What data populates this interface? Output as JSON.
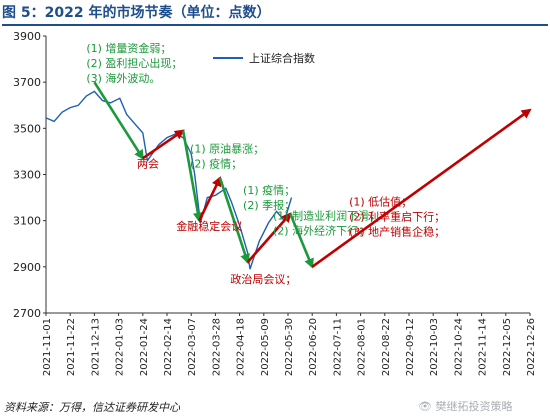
{
  "figure": {
    "title": "图 5：2022 年的市场节奏（单位：点数）",
    "source": "资料来源：万得，信达证券研发中心",
    "watermark": "👁 樊继拓投资策略"
  },
  "colors": {
    "line": "#1f5fb4",
    "green": "#1a9a3a",
    "red": "#c00000"
  },
  "chart_data": {
    "type": "line",
    "series": [
      {
        "name": "上证综合指数",
        "x": [
          "2021-11-01",
          "2021-11-08",
          "2021-11-15",
          "2021-11-22",
          "2021-11-29",
          "2021-12-06",
          "2021-12-13",
          "2021-12-20",
          "2021-12-27",
          "2022-01-04",
          "2022-01-10",
          "2022-01-17",
          "2022-01-24",
          "2022-01-28",
          "2022-02-07",
          "2022-02-14",
          "2022-02-21",
          "2022-02-28",
          "2022-03-07",
          "2022-03-10",
          "2022-03-15",
          "2022-03-21",
          "2022-03-28",
          "2022-04-06",
          "2022-04-11",
          "2022-04-18",
          "2022-04-25",
          "2022-04-27",
          "2022-05-05",
          "2022-05-13",
          "2022-05-20",
          "2022-05-27",
          "2022-06-02"
        ],
        "values": [
          3545,
          3530,
          3570,
          3590,
          3600,
          3640,
          3660,
          3620,
          3610,
          3630,
          3560,
          3520,
          3480,
          3360,
          3430,
          3460,
          3475,
          3460,
          3390,
          3300,
          3090,
          3200,
          3210,
          3240,
          3180,
          3080,
          2960,
          2890,
          3010,
          3090,
          3140,
          3100,
          3200
        ]
      }
    ],
    "ylim": [
      2700,
      3900
    ],
    "yticks": [
      2700,
      2900,
      3100,
      3300,
      3500,
      3700,
      3900
    ],
    "xlim": [
      "2021-11-01",
      "2022-12-26"
    ],
    "xticks": [
      "2021-11-01",
      "2021-11-22",
      "2021-12-13",
      "2022-01-03",
      "2022-01-24",
      "2022-02-14",
      "2022-03-07",
      "2022-03-28",
      "2022-04-18",
      "2022-05-09",
      "2022-05-30",
      "2022-06-20",
      "2022-07-11",
      "2022-08-01",
      "2022-08-22",
      "2022-09-12",
      "2022-10-03",
      "2022-10-24",
      "2022-11-14",
      "2022-12-05",
      "2022-12-26"
    ],
    "legend": {
      "position": "top-right"
    },
    "arrows": [
      {
        "color": "green",
        "from": [
          "2021-12-13",
          3700
        ],
        "to": [
          "2022-01-24",
          3370
        ]
      },
      {
        "color": "red",
        "from": [
          "2022-01-24",
          3370
        ],
        "to": [
          "2022-02-28",
          3490
        ]
      },
      {
        "color": "green",
        "from": [
          "2022-02-28",
          3490
        ],
        "to": [
          "2022-03-14",
          3100
        ]
      },
      {
        "color": "red",
        "from": [
          "2022-03-14",
          3100
        ],
        "to": [
          "2022-04-01",
          3285
        ]
      },
      {
        "color": "green",
        "from": [
          "2022-04-01",
          3285
        ],
        "to": [
          "2022-04-25",
          2920
        ]
      },
      {
        "color": "red",
        "from": [
          "2022-04-25",
          2920
        ],
        "to": [
          "2022-06-01",
          3130
        ]
      },
      {
        "color": "green",
        "from": [
          "2022-06-01",
          3130
        ],
        "to": [
          "2022-06-20",
          2900
        ]
      },
      {
        "color": "red",
        "from": [
          "2022-06-20",
          2900
        ],
        "to": [
          "2022-12-26",
          3580
        ]
      }
    ],
    "annotations": [
      {
        "color": "green",
        "at": [
          "2021-12-06",
          3830
        ],
        "lines": [
          "(1) 增量资金弱；",
          "(2) 盈利担心出现；",
          "(3) 海外波动。"
        ]
      },
      {
        "color": "red",
        "at": [
          "2022-01-19",
          3330
        ],
        "lines": [
          "两会"
        ]
      },
      {
        "color": "green",
        "at": [
          "2022-03-06",
          3395
        ],
        "lines": [
          "(1) 原油暴涨；",
          "(2) 疫情；"
        ]
      },
      {
        "color": "red",
        "at": [
          "2022-02-22",
          3060
        ],
        "lines": [
          "金融稳定会议"
        ]
      },
      {
        "color": "green",
        "at": [
          "2022-04-21",
          3215
        ],
        "lines": [
          "(1) 疫情；",
          "(2) 季报；"
        ]
      },
      {
        "color": "green",
        "at": [
          "2022-05-17",
          3105
        ],
        "lines": [
          "(1) 制造业利润下滑；",
          "(2) 海外经济下行；"
        ]
      },
      {
        "color": "red",
        "at": [
          "2022-04-10",
          2830
        ],
        "lines": [
          "政治局会议；"
        ]
      },
      {
        "color": "red",
        "at": [
          "2022-07-22",
          3165
        ],
        "lines": [
          "(1)  低估值；",
          "(2)  利率重启下行；",
          "(3)  地产销售企稳；"
        ]
      }
    ]
  }
}
